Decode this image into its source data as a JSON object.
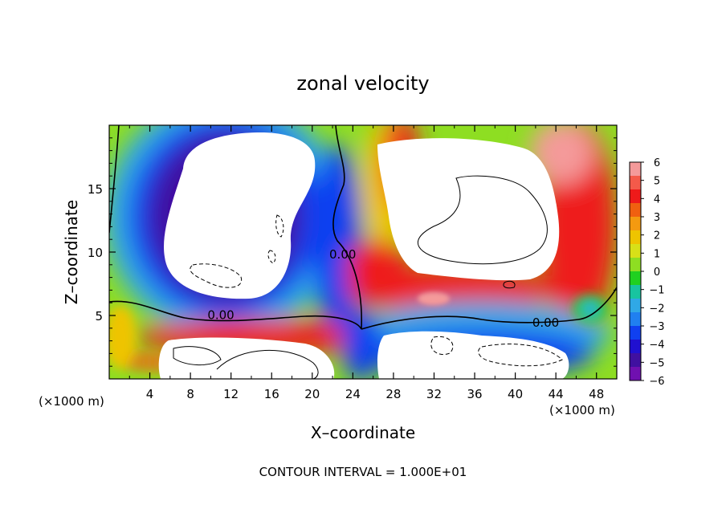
{
  "chart_data": {
    "type": "heatmap",
    "title": "zonal velocity",
    "xlabel": "X–coordinate",
    "ylabel": "Z–coordinate",
    "x_unit_left": "(×1000 m)",
    "x_unit_right": "(×1000 m)",
    "footer": "CONTOUR INTERVAL = 1.000E+01",
    "xlim": [
      0,
      50
    ],
    "ylim": [
      0,
      20
    ],
    "x_ticks": [
      4,
      8,
      12,
      16,
      20,
      24,
      28,
      32,
      36,
      40,
      44,
      48
    ],
    "y_ticks": [
      5,
      10,
      15
    ],
    "colorbar": {
      "min": -6,
      "max": 6,
      "tick_labels": [
        "6",
        "5",
        "4",
        "3",
        "2",
        "1",
        "0",
        "−1",
        "−2",
        "−3",
        "−4",
        "−5",
        "−6"
      ],
      "colors": [
        "#f49a9a",
        "#f45a4a",
        "#ee1a1a",
        "#f06010",
        "#f49a10",
        "#eec400",
        "#d8e018",
        "#8ede22",
        "#20d020",
        "#18c4a0",
        "#30a8e6",
        "#2080f0",
        "#1040f0",
        "#2010d0",
        "#4010a0",
        "#7010b0"
      ],
      "out_of_range": "#ffffff"
    },
    "contour_labels": [
      {
        "text": "0.00",
        "x": 23.0,
        "y": 9.5
      },
      {
        "text": "0.00",
        "x": 11.0,
        "y": 4.7
      },
      {
        "text": "0.00",
        "x": 43.0,
        "y": 4.1
      }
    ]
  }
}
